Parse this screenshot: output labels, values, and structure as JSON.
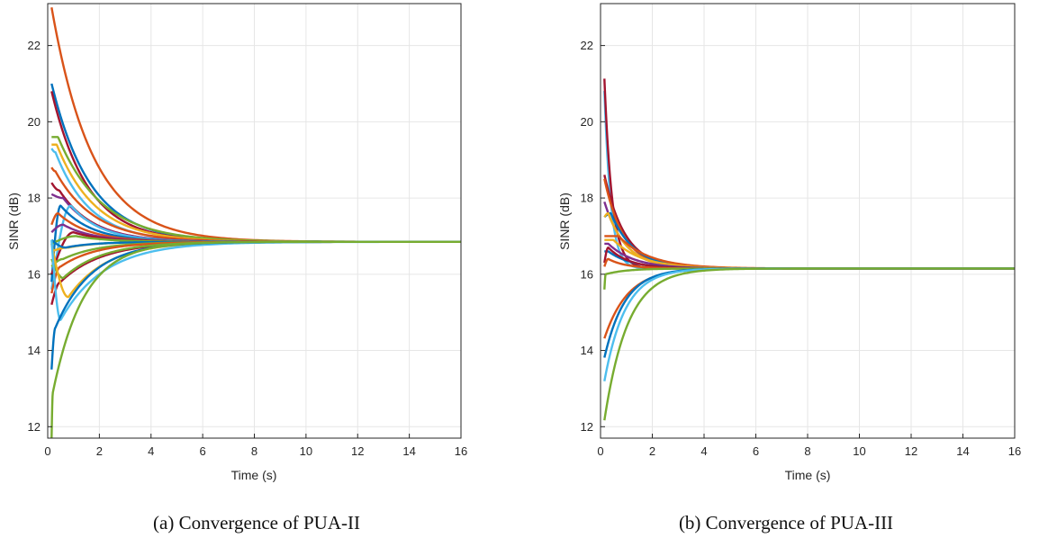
{
  "chart_data": [
    {
      "type": "line",
      "caption": "(a) Convergence of PUA-II",
      "xlabel": "Time (s)",
      "ylabel": "SINR (dB)",
      "xlim": [
        0,
        16
      ],
      "ylim": [
        11.7,
        23.1
      ],
      "xticks": [
        0,
        2,
        4,
        6,
        8,
        10,
        12,
        14,
        16
      ],
      "yticks": [
        12,
        14,
        16,
        18,
        20,
        22
      ],
      "grid": true,
      "converged_value": 16.85,
      "series": [
        {
          "y0": 23.0,
          "peak": 23.0,
          "tpeak": 0.15,
          "tau": 1.6,
          "color": "#D95319"
        },
        {
          "y0": 21.0,
          "peak": 21.0,
          "tpeak": 0.15,
          "tau": 1.5,
          "color": "#0072BD"
        },
        {
          "y0": 20.8,
          "peak": 20.8,
          "tpeak": 0.15,
          "tau": 1.4,
          "color": "#A2142F"
        },
        {
          "y0": 19.6,
          "peak": 19.6,
          "tpeak": 0.4,
          "tau": 1.7,
          "color": "#77AC30"
        },
        {
          "y0": 19.4,
          "peak": 19.4,
          "tpeak": 0.35,
          "tau": 1.5,
          "color": "#EDB120"
        },
        {
          "y0": 19.3,
          "peak": 19.2,
          "tpeak": 0.3,
          "tau": 1.35,
          "color": "#4DBEEE"
        },
        {
          "y0": 18.8,
          "peak": 18.7,
          "tpeak": 0.3,
          "tau": 1.5,
          "color": "#D95319"
        },
        {
          "y0": 18.4,
          "peak": 18.2,
          "tpeak": 0.45,
          "tau": 1.3,
          "color": "#A2142F"
        },
        {
          "y0": 18.1,
          "peak": 18.0,
          "tpeak": 0.6,
          "tau": 1.3,
          "color": "#7E2F8E"
        },
        {
          "y0": 15.6,
          "peak": 17.8,
          "tpeak": 0.9,
          "tau": 1.2,
          "color": "#4DBEEE"
        },
        {
          "y0": 15.8,
          "peak": 17.8,
          "tpeak": 0.5,
          "tau": 1.2,
          "color": "#0072BD"
        },
        {
          "y0": 17.3,
          "peak": 17.6,
          "tpeak": 0.4,
          "tau": 1.2,
          "color": "#D95319"
        },
        {
          "y0": 17.1,
          "peak": 17.3,
          "tpeak": 0.6,
          "tau": 1.2,
          "color": "#7E2F8E"
        },
        {
          "y0": 16.0,
          "peak": 17.1,
          "tpeak": 1.0,
          "tau": 1.2,
          "color": "#A2142F"
        },
        {
          "y0": 16.8,
          "peak": 17.0,
          "tpeak": 1.1,
          "tau": 1.2,
          "color": "#77AC30"
        },
        {
          "y0": 16.6,
          "peak": 16.7,
          "tpeak": 0.8,
          "tau": 1.1,
          "color": "#EDB120"
        },
        {
          "y0": 16.9,
          "peak": 16.7,
          "tpeak": 0.7,
          "tau": 1.1,
          "color": "#0072BD"
        },
        {
          "y0": 16.2,
          "peak": 16.4,
          "tpeak": 0.6,
          "tau": 1.4,
          "color": "#77AC30"
        },
        {
          "y0": 15.5,
          "peak": 16.2,
          "tpeak": 0.5,
          "tau": 1.4,
          "color": "#D95319"
        },
        {
          "y0": 15.2,
          "peak": 15.8,
          "tpeak": 0.5,
          "tau": 1.6,
          "color": "#A2142F"
        },
        {
          "y0": 16.4,
          "peak": 15.9,
          "tpeak": 0.6,
          "tau": 1.5,
          "color": "#77AC30"
        },
        {
          "y0": 16.8,
          "peak": 15.4,
          "tpeak": 0.8,
          "tau": 1.5,
          "color": "#EDB120"
        },
        {
          "y0": 16.9,
          "peak": 14.8,
          "tpeak": 0.5,
          "tau": 1.7,
          "color": "#4DBEEE"
        },
        {
          "y0": 13.5,
          "peak": 14.6,
          "tpeak": 0.3,
          "tau": 1.4,
          "color": "#0072BD"
        },
        {
          "y0": 11.7,
          "peak": 12.9,
          "tpeak": 0.2,
          "tau": 1.2,
          "color": "#77AC30"
        }
      ]
    },
    {
      "type": "line",
      "caption": "(b) Convergence of PUA-III",
      "xlabel": "Time (s)",
      "ylabel": "SINR (dB)",
      "xlim": [
        0,
        16
      ],
      "ylim": [
        11.7,
        23.1
      ],
      "xticks": [
        0,
        2,
        4,
        6,
        8,
        10,
        12,
        14,
        16
      ],
      "yticks": [
        12,
        14,
        16,
        18,
        20,
        22
      ],
      "grid": true,
      "converged_value": 16.15,
      "series": [
        {
          "y0": 23.1,
          "peak": 23.1,
          "tpeak": 0.05,
          "tau": 0.25,
          "color": "#4DBEEE"
        },
        {
          "y0": 23.1,
          "peak": 23.1,
          "tpeak": 0.05,
          "tau": 0.3,
          "color": "#A2142F"
        },
        {
          "y0": 18.7,
          "peak": 18.7,
          "tpeak": 0.12,
          "tau": 0.8,
          "color": "#A2142F"
        },
        {
          "y0": 18.6,
          "peak": 18.6,
          "tpeak": 0.12,
          "tau": 0.75,
          "color": "#D95319"
        },
        {
          "y0": 17.9,
          "peak": 17.9,
          "tpeak": 0.15,
          "tau": 0.8,
          "color": "#7E2F8E"
        },
        {
          "y0": 17.5,
          "peak": 17.6,
          "tpeak": 0.4,
          "tau": 0.9,
          "color": "#0072BD"
        },
        {
          "y0": 17.5,
          "peak": 17.6,
          "tpeak": 0.3,
          "tau": 0.8,
          "color": "#EDB120"
        },
        {
          "y0": 17.0,
          "peak": 17.0,
          "tpeak": 0.7,
          "tau": 1.2,
          "color": "#D95319"
        },
        {
          "y0": 16.9,
          "peak": 16.9,
          "tpeak": 0.5,
          "tau": 1.1,
          "color": "#EDB120"
        },
        {
          "y0": 16.8,
          "peak": 16.8,
          "tpeak": 0.3,
          "tau": 1.0,
          "color": "#7E2F8E"
        },
        {
          "y0": 16.6,
          "peak": 16.6,
          "tpeak": 0.3,
          "tau": 0.9,
          "color": "#0072BD"
        },
        {
          "y0": 16.3,
          "peak": 16.7,
          "tpeak": 0.3,
          "tau": 0.8,
          "color": "#A2142F"
        },
        {
          "y0": 16.2,
          "peak": 16.4,
          "tpeak": 0.3,
          "tau": 0.7,
          "color": "#D95319"
        },
        {
          "y0": 15.6,
          "peak": 16.0,
          "tpeak": 0.2,
          "tau": 0.8,
          "color": "#77AC30"
        },
        {
          "y0": 14.1,
          "peak": 14.1,
          "tpeak": 0.05,
          "tau": 0.9,
          "color": "#D95319"
        },
        {
          "y0": 13.5,
          "peak": 13.5,
          "tpeak": 0.05,
          "tau": 0.8,
          "color": "#0072BD"
        },
        {
          "y0": 12.8,
          "peak": 12.8,
          "tpeak": 0.05,
          "tau": 0.8,
          "color": "#4DBEEE"
        },
        {
          "y0": 11.7,
          "peak": 11.7,
          "tpeak": 0.05,
          "tau": 0.9,
          "color": "#77AC30"
        }
      ]
    }
  ]
}
